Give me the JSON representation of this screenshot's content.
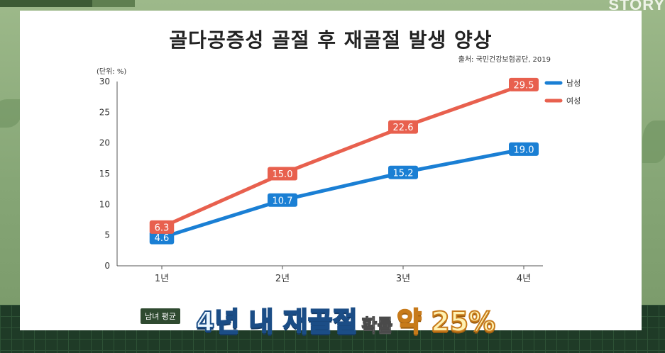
{
  "overlay": {
    "channel_mark": "STORY"
  },
  "chart_data": {
    "type": "line",
    "title": "골다공증성 골절 후 재골절 발생 양상",
    "source": "출처: 국민건강보험공단, 2019",
    "unit_label": "(단위: %)",
    "categories": [
      "1년",
      "2년",
      "3년",
      "4년"
    ],
    "ylim": [
      0,
      30
    ],
    "yticks": [
      0,
      5,
      10,
      15,
      20,
      25,
      30
    ],
    "grid": false,
    "legend_position": "top-right",
    "series": [
      {
        "name": "남성",
        "color": "#1a7fd4",
        "values": [
          4.6,
          10.7,
          15.2,
          19.0
        ],
        "labels": [
          "4.6",
          "10.7",
          "15.2",
          "19.0"
        ]
      },
      {
        "name": "여성",
        "color": "#e8604e",
        "values": [
          6.3,
          15.0,
          22.6,
          29.5
        ],
        "labels": [
          "6.3",
          "15.0",
          "22.6",
          "29.5"
        ]
      }
    ]
  },
  "caption": {
    "badge": "남녀 평균",
    "part1": "4년 내 재골절",
    "part2": "확률",
    "part3": "약 25%"
  }
}
